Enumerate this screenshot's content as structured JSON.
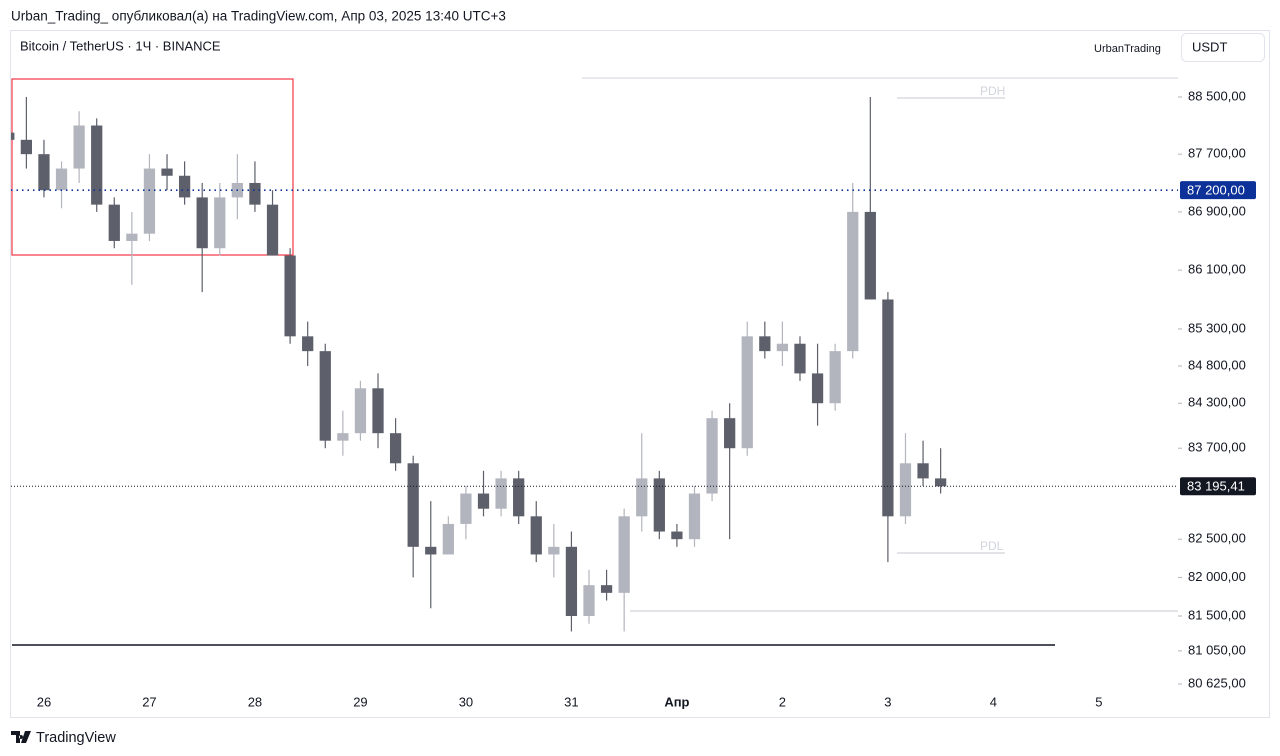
{
  "header": {
    "publisher_line": "Urban_Trading_ опубликовал(а) на TradingView.com, Апр 03, 2025 13:40 UTC+3",
    "author_label": "UrbanTrading",
    "currency": "USDT",
    "brand": "TradingView"
  },
  "chart_data": {
    "type": "candlestick",
    "title": "Bitcoin / TetherUS · 1Ч · BINANCE",
    "categories": [
      null,
      null,
      "26",
      null,
      null,
      null,
      null,
      null,
      "27",
      null,
      null,
      null,
      null,
      null,
      "28",
      null,
      null,
      null,
      null,
      null,
      "29",
      null,
      null,
      null,
      null,
      null,
      "30",
      null,
      null,
      null,
      null,
      null,
      "31",
      null,
      null,
      null,
      null,
      null,
      "Апр",
      null,
      null,
      null,
      null,
      null,
      "2",
      null,
      null,
      null,
      null,
      null,
      "3",
      null,
      null,
      null,
      null,
      null,
      "4",
      null,
      null,
      null,
      null,
      null,
      "5",
      null,
      null,
      null,
      null
    ],
    "open": [
      88000,
      87900,
      87700,
      87200,
      87500,
      88100,
      87000,
      86500,
      86600,
      87500,
      87400,
      87100,
      86400,
      87100,
      87300,
      87000,
      86300,
      85200,
      85000,
      83800,
      83900,
      84500,
      83900,
      83500,
      82400,
      82300,
      82700,
      83100,
      82900,
      83300,
      82800,
      82300,
      82400,
      81500,
      81900,
      81800,
      82800,
      83300,
      82600,
      82500,
      83100,
      84100,
      83700,
      85200,
      85000,
      85100,
      84700,
      84300,
      85000,
      86900,
      85700,
      82800,
      83500,
      83300,
      null,
      null,
      null,
      null,
      null,
      null,
      null,
      null,
      null,
      null,
      null,
      null,
      null
    ],
    "high": [
      88300,
      88500,
      87900,
      87600,
      88300,
      88200,
      87100,
      86900,
      87700,
      87700,
      87600,
      87300,
      87300,
      87700,
      87600,
      87200,
      86400,
      85400,
      85100,
      84200,
      84600,
      84700,
      84100,
      83600,
      83000,
      82800,
      83200,
      83400,
      83400,
      83400,
      83000,
      82700,
      82600,
      82100,
      82100,
      82900,
      83900,
      83400,
      82700,
      83200,
      84200,
      84300,
      85400,
      85400,
      85400,
      85200,
      85100,
      85100,
      87300,
      88500,
      85800,
      83900,
      83800,
      83700,
      null,
      null,
      null,
      null,
      null,
      null,
      null,
      null,
      null,
      null,
      null,
      null,
      null
    ],
    "low": [
      87500,
      87500,
      87100,
      86950,
      87300,
      86900,
      86400,
      85900,
      86500,
      87200,
      87000,
      85800,
      86300,
      86800,
      86900,
      86300,
      85100,
      84800,
      83700,
      83600,
      83800,
      83700,
      83400,
      82000,
      81600,
      82300,
      82500,
      82800,
      82800,
      82700,
      82200,
      82000,
      81300,
      81400,
      81700,
      81300,
      82600,
      82500,
      82400,
      82400,
      83000,
      82500,
      83600,
      84900,
      84800,
      84600,
      84000,
      84200,
      84900,
      85700,
      82200,
      82700,
      83200,
      83100,
      null,
      null,
      null,
      null,
      null,
      null,
      null,
      null,
      null,
      null,
      null,
      null,
      null
    ],
    "close": [
      87900,
      87700,
      87200,
      87500,
      88100,
      87000,
      86500,
      86600,
      87500,
      87400,
      87100,
      86400,
      87100,
      87300,
      87000,
      86300,
      85200,
      85000,
      83800,
      83900,
      84500,
      83900,
      83500,
      82400,
      82300,
      82700,
      83100,
      82900,
      83300,
      82800,
      82300,
      82400,
      81500,
      81900,
      81800,
      82800,
      83300,
      82600,
      82500,
      83100,
      84100,
      83700,
      85200,
      85000,
      85100,
      84700,
      84300,
      85000,
      86900,
      85700,
      82800,
      83500,
      83300,
      83195.41,
      null,
      null,
      null,
      null,
      null,
      null,
      null,
      null,
      null,
      null,
      null,
      null,
      null
    ],
    "up_color": "#b2b5be",
    "down_color": "#5d606b",
    "log_scale": true,
    "ylim": [
      80548,
      89446
    ],
    "yticks": [
      {
        "value": 80625,
        "label": "80 625,00"
      },
      {
        "value": 81050,
        "label": "81 050,00"
      },
      {
        "value": 81500,
        "label": "81 500,00"
      },
      {
        "value": 82000,
        "label": "82 000,00"
      },
      {
        "value": 82500,
        "label": "82 500,00"
      },
      {
        "value": 83700,
        "label": "83 700,00"
      },
      {
        "value": 84300,
        "label": "84 300,00"
      },
      {
        "value": 84800,
        "label": "84 800,00"
      },
      {
        "value": 85300,
        "label": "85 300,00"
      },
      {
        "value": 86100,
        "label": "86 100,00"
      },
      {
        "value": 86900,
        "label": "86 900,00"
      },
      {
        "value": 87700,
        "label": "87 700,00"
      },
      {
        "value": 88500,
        "label": "88 500,00"
      }
    ],
    "level": {
      "value": 87200,
      "label": "87 200,00",
      "color": "#0c3299"
    },
    "last_price": {
      "value": 83195.41,
      "label": "83 195,41",
      "color": "#131722"
    },
    "annotations": [
      "PDH",
      "PDL"
    ]
  }
}
